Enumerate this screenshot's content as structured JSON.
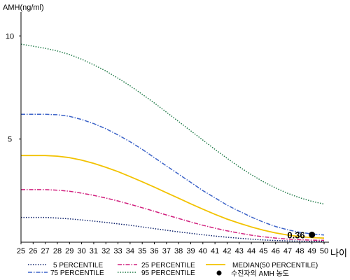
{
  "chart_data": {
    "type": "line",
    "ylabel": "AMH(ng/ml)",
    "xlabel": "나이",
    "x": [
      25,
      26,
      27,
      28,
      29,
      30,
      31,
      32,
      33,
      34,
      35,
      36,
      37,
      38,
      39,
      40,
      41,
      42,
      43,
      44,
      45,
      46,
      47,
      48,
      49,
      50
    ],
    "y_ticks": [
      5,
      10
    ],
    "ylim": [
      0,
      11.3
    ],
    "xlim": [
      25,
      50
    ],
    "grid": false,
    "legend_position": "bottom",
    "series": [
      {
        "name": "5 PERCENTILE",
        "color": "#0b1f6a",
        "dash": "dotted",
        "values": [
          1.2,
          1.2,
          1.2,
          1.17,
          1.13,
          1.08,
          1.02,
          0.96,
          0.89,
          0.82,
          0.74,
          0.66,
          0.58,
          0.5,
          0.43,
          0.36,
          0.3,
          0.24,
          0.19,
          0.15,
          0.11,
          0.08,
          0.06,
          0.05,
          0.04,
          0.04
        ]
      },
      {
        "name": "75 PERCENTILE",
        "color": "#3c63c8",
        "dash": "dashdot",
        "values": [
          6.2,
          6.2,
          6.2,
          6.18,
          6.1,
          5.95,
          5.75,
          5.5,
          5.2,
          4.87,
          4.5,
          4.1,
          3.7,
          3.3,
          2.9,
          2.5,
          2.15,
          1.8,
          1.5,
          1.22,
          0.97,
          0.76,
          0.6,
          0.48,
          0.4,
          0.35
        ]
      },
      {
        "name": "25 PERCENTILE",
        "color": "#d1207e",
        "dash": "dashdot",
        "values": [
          2.55,
          2.55,
          2.55,
          2.52,
          2.47,
          2.38,
          2.27,
          2.14,
          2.0,
          1.84,
          1.67,
          1.5,
          1.32,
          1.15,
          0.98,
          0.82,
          0.68,
          0.55,
          0.44,
          0.34,
          0.26,
          0.2,
          0.15,
          0.12,
          0.1,
          0.09
        ]
      },
      {
        "name": "95 PERCENTILE",
        "color": "#1f7a47",
        "dash": "dotted",
        "values": [
          9.6,
          9.5,
          9.4,
          9.27,
          9.1,
          8.87,
          8.6,
          8.3,
          7.95,
          7.58,
          7.17,
          6.75,
          6.3,
          5.85,
          5.4,
          4.95,
          4.5,
          4.07,
          3.65,
          3.27,
          2.93,
          2.63,
          2.37,
          2.15,
          1.98,
          1.85
        ]
      },
      {
        "name": "MEDIAN(50 PERCENTILE)",
        "color": "#f2c200",
        "dash": "solid",
        "values": [
          4.2,
          4.2,
          4.2,
          4.17,
          4.1,
          3.98,
          3.82,
          3.63,
          3.42,
          3.18,
          2.93,
          2.67,
          2.4,
          2.13,
          1.86,
          1.6,
          1.35,
          1.12,
          0.92,
          0.74,
          0.58,
          0.45,
          0.35,
          0.27,
          0.22,
          0.2
        ]
      }
    ],
    "marker": {
      "name": "수진자의 AMH 농도",
      "x": 49,
      "y": 0.36,
      "label": "0.36",
      "color": "#000000"
    }
  }
}
